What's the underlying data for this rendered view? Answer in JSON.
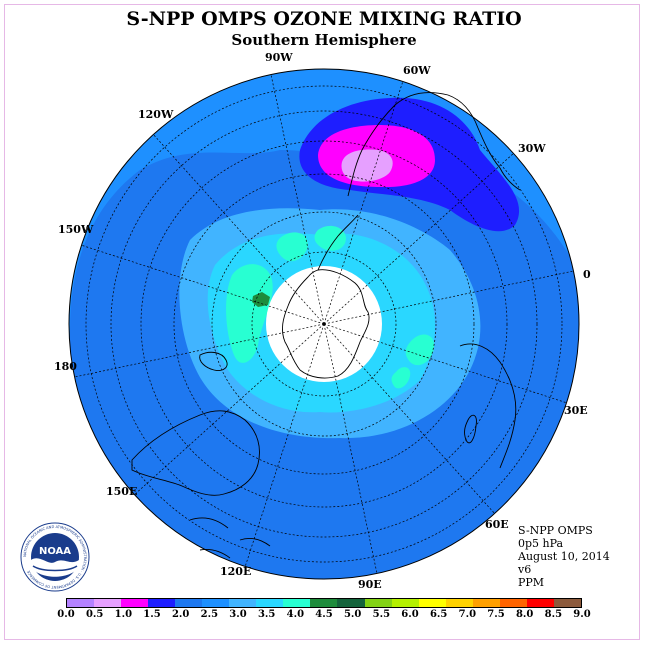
{
  "header": {
    "title": "S-NPP OMPS OZONE MIXING RATIO",
    "subtitle": "Southern Hemisphere"
  },
  "map": {
    "projection": "polar stereographic",
    "center": "South Pole",
    "longitude_labels": [
      "90W",
      "60W",
      "30W",
      "0",
      "30E",
      "60E",
      "90E",
      "120E",
      "150E",
      "180",
      "150W",
      "120W"
    ],
    "colors": {
      "background_field": "#1e90ff",
      "outer_band": "#1e78f0",
      "inner_ring": "#41b4ff",
      "core_ring": "#2ad7ff",
      "max_zone": "#28ffd2",
      "peak_zone": "#1e8c3c",
      "low_high_1": "#1e1eff",
      "low_high_2": "#ff00ff",
      "low_high_3": "#e6a0ff",
      "polar_hole": "#ffffff"
    }
  },
  "info": {
    "instrument": "S-NPP OMPS",
    "pressure": "0p5 hPa",
    "date": "August 10, 2014",
    "version": "v6",
    "units": "PPM"
  },
  "logo": {
    "text": "NOAA",
    "ring_text": "NATIONAL OCEANIC AND ATMOSPHERIC ADMINISTRATION · U.S. DEPARTMENT OF COMMERCE"
  },
  "colorbar": {
    "colors": [
      "#b482ff",
      "#e6a0ff",
      "#ff00ff",
      "#1e1eff",
      "#1e78f0",
      "#1e90ff",
      "#41b4ff",
      "#2ad7ff",
      "#28ffd2",
      "#1e8c3c",
      "#14643c",
      "#82d214",
      "#b4f000",
      "#ffff00",
      "#ffd200",
      "#ffa000",
      "#ff6400",
      "#ff0000",
      "#8c5a3c"
    ],
    "tick_labels": [
      "0.0",
      "0.5",
      "1.0",
      "1.5",
      "2.0",
      "2.5",
      "3.0",
      "3.5",
      "4.0",
      "4.5",
      "5.0",
      "5.5",
      "6.0",
      "6.5",
      "7.0",
      "7.5",
      "8.0",
      "8.5",
      "9.0"
    ]
  }
}
